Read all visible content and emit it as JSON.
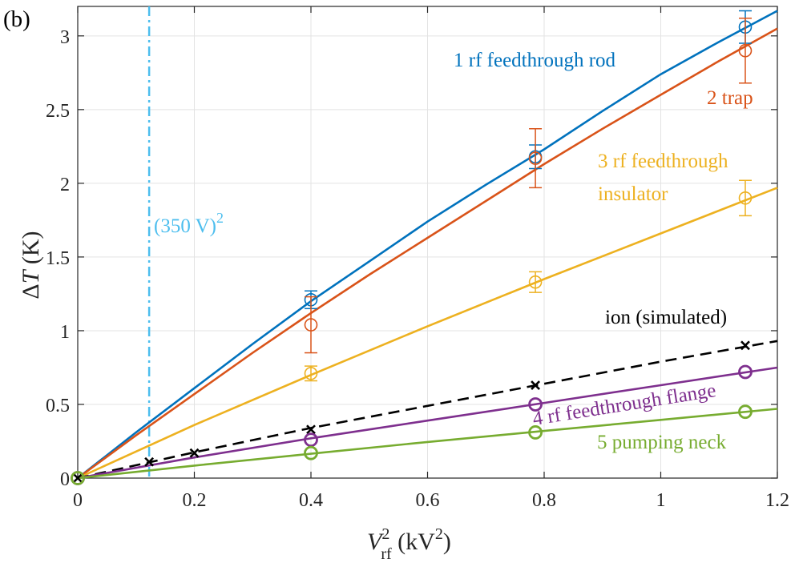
{
  "panel_label": "(b)",
  "chart_data": {
    "type": "line",
    "title": "",
    "xlabel": {
      "main": "V",
      "sup": "2",
      "sub": "rf",
      "unit_open": " (kV",
      "unit_sup": "2",
      "unit_close": ")"
    },
    "ylabel": {
      "delta": "Δ",
      "var": "T",
      "unit": " (K)"
    },
    "xlim": [
      0,
      1.2
    ],
    "ylim": [
      0,
      3.2
    ],
    "xticks": [
      0,
      0.2,
      0.4,
      0.6,
      0.8,
      1,
      1.2
    ],
    "yticks": [
      0,
      0.5,
      1,
      1.5,
      2,
      2.5,
      3
    ],
    "xtick_labels": [
      "0",
      "0.2",
      "0.4",
      "0.6",
      "0.8",
      "1",
      "1.2"
    ],
    "ytick_labels": [
      "0",
      "0.5",
      "1",
      "1.5",
      "2",
      "2.5",
      "3"
    ],
    "grid": true,
    "reference_line": {
      "x": 0.1225,
      "color": "#4DBEEE",
      "label": "(350 V)",
      "label_sup": "2"
    },
    "series": [
      {
        "name": "1 rf feedthrough rod",
        "color": "#0072BD",
        "marker": "circle",
        "fit_x": [
          0,
          0.1,
          0.2,
          0.3,
          0.4,
          0.5,
          0.6,
          0.7,
          0.8,
          0.9,
          1.0,
          1.1,
          1.2
        ],
        "fit_y": [
          0,
          0.31,
          0.61,
          0.91,
          1.2,
          1.47,
          1.74,
          1.99,
          2.23,
          2.49,
          2.74,
          2.96,
          3.17
        ],
        "points": [
          {
            "x": 0,
            "y": 0,
            "err": 0
          },
          {
            "x": 0.4,
            "y": 1.21,
            "err": 0.06
          },
          {
            "x": 0.785,
            "y": 2.18,
            "err": 0.08
          },
          {
            "x": 1.145,
            "y": 3.06,
            "err": 0.11
          }
        ]
      },
      {
        "name": "2 trap",
        "color": "#D95319",
        "marker": "circle",
        "fit_x": [
          0,
          0.1,
          0.2,
          0.3,
          0.4,
          0.5,
          0.6,
          0.7,
          0.8,
          0.9,
          1.0,
          1.1,
          1.2
        ],
        "fit_y": [
          0,
          0.29,
          0.57,
          0.85,
          1.12,
          1.38,
          1.63,
          1.88,
          2.13,
          2.37,
          2.6,
          2.83,
          3.05
        ],
        "points": [
          {
            "x": 0,
            "y": 0,
            "err": 0
          },
          {
            "x": 0.4,
            "y": 1.04,
            "err": 0.19
          },
          {
            "x": 0.785,
            "y": 2.17,
            "err": 0.2
          },
          {
            "x": 1.145,
            "y": 2.9,
            "err": 0.22
          }
        ]
      },
      {
        "name": "3 rf feedthrough insulator",
        "color": "#EDB120",
        "marker": "circle",
        "fit_x": [
          0,
          0.2,
          0.4,
          0.6,
          0.8,
          1.0,
          1.2
        ],
        "fit_y": [
          0,
          0.36,
          0.7,
          1.03,
          1.35,
          1.66,
          1.97
        ],
        "points": [
          {
            "x": 0,
            "y": 0,
            "err": 0
          },
          {
            "x": 0.4,
            "y": 0.71,
            "err": 0.05
          },
          {
            "x": 0.785,
            "y": 1.33,
            "err": 0.07
          },
          {
            "x": 1.145,
            "y": 1.9,
            "err": 0.12
          }
        ]
      },
      {
        "name": "ion (simulated)",
        "color": "#000000",
        "marker": "cross",
        "dashed": true,
        "fit_x": [
          0,
          0.2,
          0.4,
          0.6,
          0.8,
          1.0,
          1.2
        ],
        "fit_y": [
          0,
          0.175,
          0.34,
          0.49,
          0.64,
          0.79,
          0.93
        ],
        "points": [
          {
            "x": 0,
            "y": 0,
            "err": 0
          },
          {
            "x": 0.1225,
            "y": 0.11,
            "err": 0
          },
          {
            "x": 0.2,
            "y": 0.17,
            "err": 0
          },
          {
            "x": 0.4,
            "y": 0.33,
            "err": 0
          },
          {
            "x": 0.785,
            "y": 0.63,
            "err": 0
          },
          {
            "x": 1.145,
            "y": 0.9,
            "err": 0
          }
        ]
      },
      {
        "name": "4 rf feedthrough flange",
        "color": "#7E2F8E",
        "marker": "circle",
        "fit_x": [
          0,
          0.2,
          0.4,
          0.6,
          0.8,
          1.0,
          1.2
        ],
        "fit_y": [
          0,
          0.14,
          0.27,
          0.39,
          0.51,
          0.63,
          0.75
        ],
        "points": [
          {
            "x": 0,
            "y": 0,
            "err": 0
          },
          {
            "x": 0.4,
            "y": 0.26,
            "err": 0
          },
          {
            "x": 0.785,
            "y": 0.5,
            "err": 0
          },
          {
            "x": 1.145,
            "y": 0.72,
            "err": 0
          }
        ]
      },
      {
        "name": "5 pumping neck",
        "color": "#77AC30",
        "marker": "circle",
        "fit_x": [
          0,
          0.2,
          0.4,
          0.6,
          0.8,
          1.0,
          1.2
        ],
        "fit_y": [
          0,
          0.085,
          0.165,
          0.245,
          0.32,
          0.395,
          0.47
        ],
        "points": [
          {
            "x": 0,
            "y": 0,
            "err": 0
          },
          {
            "x": 0.4,
            "y": 0.17,
            "err": 0
          },
          {
            "x": 0.785,
            "y": 0.31,
            "err": 0
          },
          {
            "x": 1.145,
            "y": 0.45,
            "err": 0
          }
        ]
      }
    ],
    "annotations": [
      {
        "id": "rod",
        "lines": [
          "1 rf feedthrough rod"
        ],
        "color": "#0072BD"
      },
      {
        "id": "trap",
        "lines": [
          "2 trap"
        ],
        "color": "#D95319"
      },
      {
        "id": "insulator",
        "lines": [
          "3 rf feedthrough",
          "insulator"
        ],
        "color": "#EDB120"
      },
      {
        "id": "ion",
        "lines": [
          "ion (simulated)"
        ],
        "color": "#000000"
      },
      {
        "id": "flange",
        "lines": [
          "4 rf feedthrough flange"
        ],
        "color": "#7E2F8E"
      },
      {
        "id": "neck",
        "lines": [
          "5 pumping neck"
        ],
        "color": "#77AC30"
      }
    ]
  }
}
